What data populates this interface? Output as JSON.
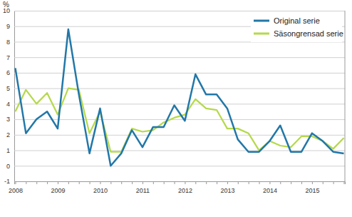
{
  "chart_data": {
    "type": "line",
    "ylabel": "%",
    "categories": [
      "2008",
      null,
      null,
      null,
      "2009",
      null,
      null,
      null,
      "2010",
      null,
      null,
      null,
      "2011",
      null,
      null,
      null,
      "2012",
      null,
      null,
      null,
      "2013",
      null,
      null,
      null,
      "2014",
      null,
      null,
      null,
      "2015",
      null,
      null,
      null
    ],
    "series": [
      {
        "name": "Original serie",
        "color": "#2277a8",
        "values": [
          6.3,
          2.1,
          3.0,
          3.5,
          2.4,
          8.8,
          4.6,
          0.8,
          3.7,
          0.0,
          0.8,
          2.3,
          1.2,
          2.5,
          2.5,
          3.9,
          2.9,
          5.9,
          4.6,
          4.6,
          3.7,
          1.7,
          0.9,
          0.9,
          1.6,
          2.6,
          0.9,
          0.9,
          2.1,
          1.6,
          0.9,
          0.8
        ]
      },
      {
        "name": "Säsongrensad serie",
        "color": "#b5d94a",
        "values": [
          3.5,
          4.9,
          4.0,
          4.7,
          3.3,
          5.0,
          4.9,
          2.1,
          3.5,
          0.9,
          0.9,
          2.4,
          2.2,
          2.3,
          2.8,
          3.1,
          3.3,
          4.3,
          3.7,
          3.6,
          2.4,
          2.4,
          2.1,
          1.0,
          1.6,
          1.3,
          1.2,
          1.9,
          1.9,
          1.6,
          1.1,
          1.8
        ]
      }
    ],
    "ylim": [
      -1,
      10
    ],
    "yticks": [
      -1,
      0,
      1,
      2,
      3,
      4,
      5,
      6,
      7,
      8,
      9,
      10
    ],
    "grid": true,
    "legend": "upper right"
  }
}
